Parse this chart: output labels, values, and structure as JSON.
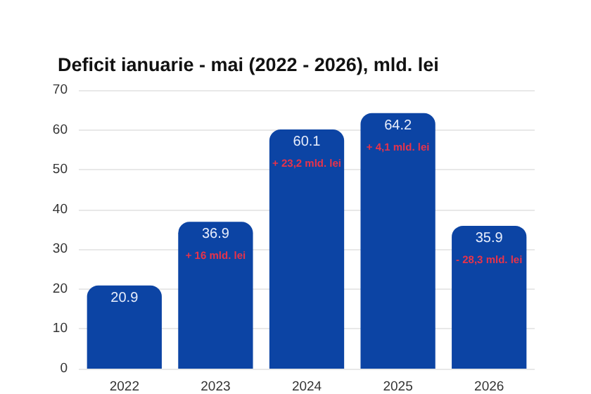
{
  "chart_data": {
    "type": "bar",
    "title": "Deficit ianuarie - mai (2022 - 2026), mld. lei",
    "categories": [
      "2022",
      "2023",
      "2024",
      "2025",
      "2026"
    ],
    "values": [
      20.9,
      36.9,
      60.1,
      64.2,
      35.9
    ],
    "color": "#0c44a4",
    "ylim": [
      0,
      70
    ],
    "yticks": [
      0,
      10,
      20,
      30,
      40,
      50,
      60,
      70
    ],
    "grid": "y",
    "data_labels": true,
    "annotations": [
      {
        "text": "+ 16 mld. lei",
        "x": "2023",
        "y": 36.9
      },
      {
        "text": "+ 23,2 mld. lei",
        "x": "2024",
        "y": 60.1
      },
      {
        "text": "+ 4,1 mld. lei",
        "x": "2025",
        "y": 64.2
      },
      {
        "text": "- 28,3 mld. lei",
        "x": "2026",
        "y": 35.9
      }
    ]
  }
}
